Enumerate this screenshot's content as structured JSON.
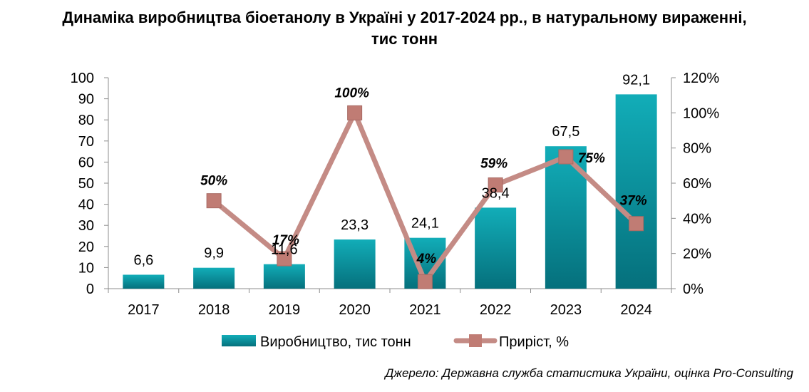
{
  "chart_data": {
    "type": "bar",
    "title_line1": "Динаміка виробництва біоетанолу в Україні у 2017-2024 рр., в натуральному вираженні,",
    "title_line2": "тис тонн",
    "categories": [
      "2017",
      "2018",
      "2019",
      "2020",
      "2021",
      "2022",
      "2023",
      "2024"
    ],
    "series": [
      {
        "name": "Виробництво, тис тонн",
        "type": "bar",
        "axis": "left",
        "values": [
          6.6,
          9.9,
          11.6,
          23.3,
          24.1,
          38.4,
          67.5,
          92.1
        ],
        "labels": [
          "6,6",
          "9,9",
          "11,6",
          "23,3",
          "24,1",
          "38,4",
          "67,5",
          "92,1"
        ],
        "color": "#0a96a3"
      },
      {
        "name": "Приріст, %",
        "type": "line",
        "axis": "right",
        "values": [
          null,
          50,
          17,
          100,
          4,
          59,
          75,
          37
        ],
        "labels": [
          "",
          "50%",
          "17%",
          "100%",
          "4%",
          "59%",
          "75%",
          "37%"
        ],
        "color": "#c48b85"
      }
    ],
    "y_left": {
      "min": 0,
      "max": 100,
      "step": 10,
      "ticks": [
        "0",
        "10",
        "20",
        "30",
        "40",
        "50",
        "60",
        "70",
        "80",
        "90",
        "100"
      ]
    },
    "y_right": {
      "min": 0,
      "max": 120,
      "step": 20,
      "ticks": [
        "0%",
        "20%",
        "40%",
        "60%",
        "80%",
        "100%",
        "120%"
      ]
    },
    "grid": false,
    "legend_position": "bottom",
    "source": "Джерело: Державна служба статистика України, оцінка Pro-Consulting"
  }
}
